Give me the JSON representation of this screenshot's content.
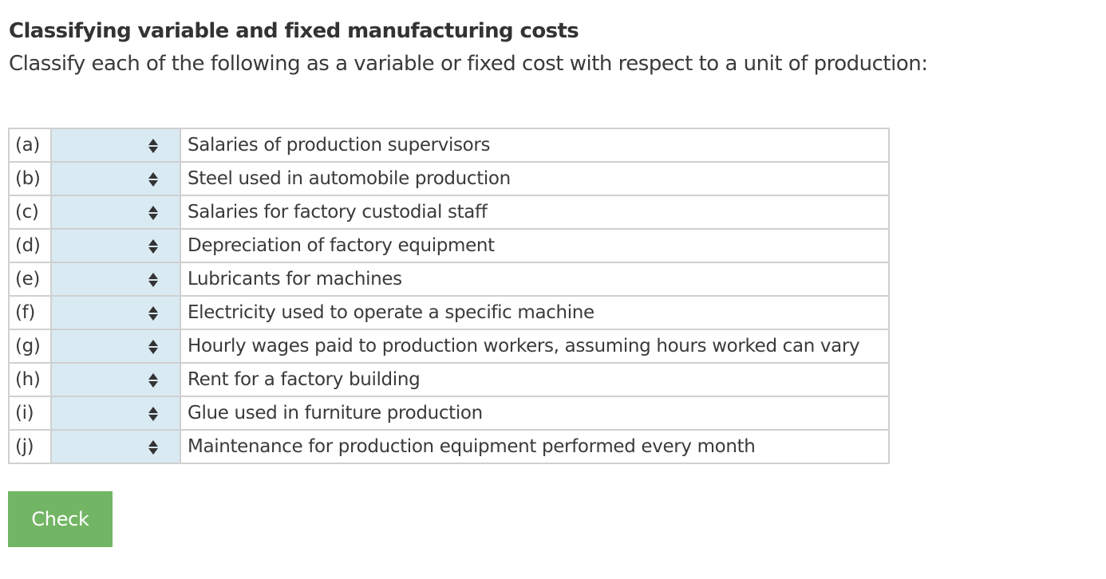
{
  "page": {
    "title": "Classifying variable and fixed manufacturing costs",
    "instructions": "Classify each of the following as a variable or fixed cost with respect to a unit of production:"
  },
  "items": [
    {
      "letter": "(a)",
      "selected": "",
      "description": "Salaries of production supervisors"
    },
    {
      "letter": "(b)",
      "selected": "",
      "description": "Steel used in automobile production"
    },
    {
      "letter": "(c)",
      "selected": "",
      "description": "Salaries for factory custodial staff"
    },
    {
      "letter": "(d)",
      "selected": "",
      "description": "Depreciation of factory equipment"
    },
    {
      "letter": "(e)",
      "selected": "",
      "description": "Lubricants for machines"
    },
    {
      "letter": "(f)",
      "selected": "",
      "description": "Electricity used to operate a specific machine"
    },
    {
      "letter": "(g)",
      "selected": "",
      "description": "Hourly wages paid to production workers, assuming hours worked can vary"
    },
    {
      "letter": "(h)",
      "selected": "",
      "description": "Rent for a factory building"
    },
    {
      "letter": "(i)",
      "selected": "",
      "description": "Glue used in furniture production"
    },
    {
      "letter": "(j)",
      "selected": "",
      "description": "Maintenance for production equipment performed every month"
    }
  ],
  "icons": {
    "select_arrows": "up-down-arrows-icon"
  },
  "colors": {
    "select_bg": "#d9eaf2",
    "button_bg": "#72b564",
    "border": "#d0d0d0"
  },
  "check_button": {
    "label": "Check"
  }
}
